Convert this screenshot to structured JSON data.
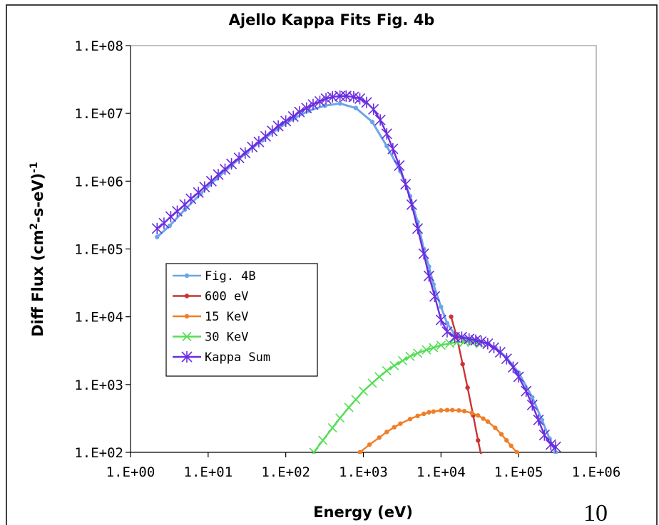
{
  "chart_data": {
    "type": "line",
    "title": "Ajello Kappa Fits Fig. 4b",
    "xlabel": "Energy (eV)",
    "ylabel": "Diff Flux (cm²-s-eV)⁻¹",
    "ylabel_parts": {
      "a": "Diff Flux (cm",
      "sup1": "2",
      "b": "-s-eV)",
      "sup2": "-1"
    },
    "x_scale": "log",
    "y_scale": "log",
    "xlim": [
      1,
      1000000
    ],
    "ylim": [
      100,
      100000000
    ],
    "x_ticks": [
      "1.E+00",
      "1.E+01",
      "1.E+02",
      "1.E+03",
      "1.E+04",
      "1.E+05",
      "1.E+06"
    ],
    "y_ticks": [
      "1.E+02",
      "1.E+03",
      "1.E+04",
      "1.E+05",
      "1.E+06",
      "1.E+07",
      "1.E+08"
    ],
    "grid": false,
    "legend_position": "left-center",
    "series": [
      {
        "name": "Fig. 4B",
        "color": "#6CA6E6",
        "marker": "dot",
        "x": [
          2.2,
          3.2,
          5,
          8,
          13,
          20,
          32,
          50,
          80,
          130,
          200,
          320,
          500,
          800,
          1300,
          2000,
          3000,
          4000,
          5000,
          6000,
          7000,
          8000,
          10000,
          12000,
          15000,
          20000,
          25000,
          30000,
          40000,
          50000,
          70000,
          100000,
          150000,
          200000,
          250000,
          300000
        ],
        "y": [
          150000,
          220000,
          380000,
          650000,
          1100000,
          1700000,
          2700000,
          4000000,
          6000000,
          8500000,
          11000000,
          13000000,
          14000000,
          12000000,
          7500000,
          3300000,
          1400000,
          600000,
          250000,
          100000,
          55000,
          30000,
          14000,
          8000,
          5500,
          4800,
          4600,
          4400,
          4000,
          3500,
          2500,
          1500,
          650,
          300,
          160,
          100
        ]
      },
      {
        "name": "600 eV",
        "color": "#CC3333",
        "marker": "dot",
        "x": [
          13500,
          16000,
          19000,
          22000,
          26000,
          30000,
          33000
        ],
        "y": [
          10000,
          5000,
          2000,
          900,
          350,
          150,
          90
        ]
      },
      {
        "name": "15 KeV",
        "color": "#F07E26",
        "marker": "dot",
        "x": [
          900,
          1200,
          1600,
          2000,
          2500,
          3000,
          4000,
          5000,
          6000,
          7000,
          8000,
          10000,
          12000,
          14000,
          17000,
          20000,
          25000,
          30000,
          35000,
          40000,
          50000,
          60000,
          70000,
          80000,
          95000,
          110000,
          125000
        ],
        "y": [
          100,
          130,
          165,
          200,
          235,
          265,
          310,
          345,
          370,
          390,
          400,
          415,
          420,
          420,
          415,
          405,
          380,
          350,
          315,
          285,
          230,
          185,
          150,
          125,
          100,
          85,
          75
        ]
      },
      {
        "name": "30 KeV",
        "color": "#55DD55",
        "marker": "x",
        "x": [
          230,
          300,
          400,
          500,
          650,
          800,
          1000,
          1300,
          1600,
          2000,
          2500,
          3200,
          4000,
          5000,
          6500,
          8000,
          10000,
          13000,
          16000,
          20000,
          25000,
          32000
        ],
        "y": [
          100,
          150,
          230,
          320,
          460,
          600,
          800,
          1050,
          1300,
          1600,
          1900,
          2250,
          2600,
          2900,
          3250,
          3500,
          3800,
          4050,
          4200,
          4300,
          4200,
          4000
        ]
      },
      {
        "name": "Kappa Sum",
        "color": "#6A2DE0",
        "marker": "star",
        "x": [
          2.2,
          2.7,
          3.3,
          4,
          5,
          6,
          7.5,
          9,
          11,
          13.5,
          16.5,
          20,
          25,
          30,
          37,
          45,
          55,
          67,
          80,
          100,
          125,
          150,
          185,
          225,
          275,
          330,
          400,
          500,
          600,
          750,
          900,
          1100,
          1350,
          1650,
          2000,
          2400,
          2900,
          3500,
          4200,
          5000,
          6000,
          7000,
          8300,
          10000,
          12000,
          15000,
          18500,
          23000,
          28000,
          33000,
          40000,
          48000,
          58000,
          70000,
          85000,
          100000,
          125000,
          150000,
          180000,
          215000,
          260000,
          300000
        ],
        "y": [
          200000,
          240000,
          300000,
          360000,
          450000,
          550000,
          680000,
          820000,
          1000000,
          1250000,
          1500000,
          1800000,
          2200000,
          2600000,
          3200000,
          3800000,
          4600000,
          5500000,
          6500000,
          7700000,
          9000000,
          10500000,
          12000000,
          13500000,
          15000000,
          16500000,
          17500000,
          18000000,
          18000000,
          17500000,
          16500000,
          14500000,
          11500000,
          8000000,
          5000000,
          3000000,
          1700000,
          900000,
          450000,
          200000,
          85000,
          40000,
          20000,
          9000,
          6000,
          5000,
          5000,
          4700,
          4500,
          4300,
          4000,
          3500,
          3000,
          2400,
          1800,
          1300,
          800,
          500,
          300,
          180,
          130,
          120
        ]
      }
    ]
  },
  "page_number": "10"
}
